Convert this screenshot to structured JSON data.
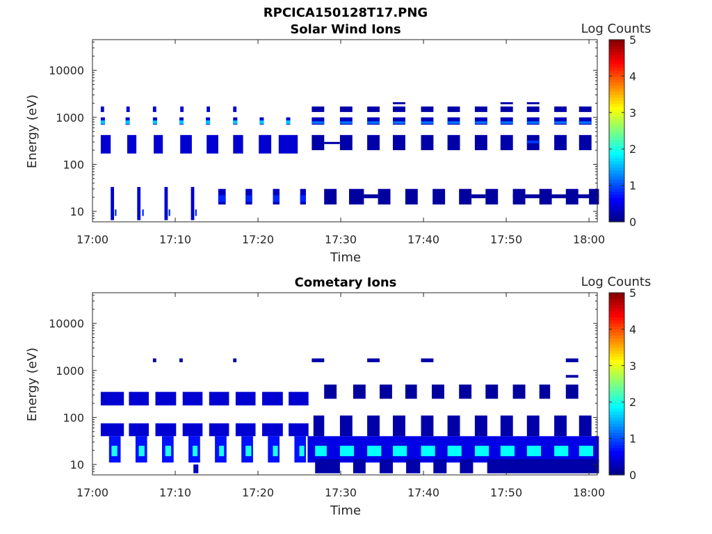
{
  "figure": {
    "title": "RPCICA150128T17.PNG"
  },
  "chart_data": [
    {
      "type": "heatmap",
      "title": "Solar Wind Ions",
      "xlabel": "Time",
      "ylabel": "Energy (eV)",
      "y_scale": "log",
      "ylim": [
        6,
        45000
      ],
      "xlim": [
        "17:00",
        "18:01"
      ],
      "x_ticks": [
        "17:00",
        "17:10",
        "17:20",
        "17:30",
        "17:40",
        "17:50",
        "18:00"
      ],
      "y_ticks": [
        "10",
        "100",
        "1000",
        "10000"
      ],
      "colorbar": {
        "label": "Log Counts",
        "range": [
          0,
          5
        ],
        "ticks": [
          "0",
          "1",
          "2",
          "3",
          "4",
          "5"
        ],
        "colormap": "jet"
      },
      "bands": [
        {
          "e": [
            700,
            1000
          ],
          "v": 0.4,
          "t": [
            [
              1.0,
              1.5
            ],
            [
              4.0,
              4.5
            ],
            [
              7.3,
              7.8
            ],
            [
              10.5,
              11.0
            ],
            [
              13.7,
              14.2
            ],
            [
              17.0,
              17.5
            ],
            [
              20.2,
              20.7
            ],
            [
              23.4,
              23.9
            ]
          ]
        },
        {
          "e": [
            720,
            860
          ],
          "v": 1.6,
          "t": [
            [
              1.0,
              1.5
            ],
            [
              4.0,
              4.5
            ],
            [
              7.3,
              7.8
            ],
            [
              10.5,
              11.0
            ],
            [
              13.7,
              14.2
            ],
            [
              17.0,
              17.5
            ],
            [
              20.2,
              20.7
            ],
            [
              23.4,
              23.9
            ]
          ]
        },
        {
          "e": [
            1300,
            1700
          ],
          "v": 0.4,
          "t": [
            [
              1.0,
              1.4
            ],
            [
              4.1,
              4.5
            ],
            [
              7.3,
              7.7
            ],
            [
              10.6,
              11.0
            ],
            [
              13.8,
              14.2
            ],
            [
              17.0,
              17.4
            ]
          ]
        },
        {
          "e": [
            170,
            420
          ],
          "v": 0.4,
          "t": [
            [
              1.0,
              2.2
            ],
            [
              4.2,
              5.3
            ],
            [
              7.4,
              8.5
            ],
            [
              10.6,
              12.0
            ],
            [
              13.8,
              15.2
            ],
            [
              17.0,
              18.2
            ],
            [
              20.1,
              21.6
            ],
            [
              22.5,
              24.8
            ]
          ]
        },
        {
          "e": [
            1300,
            1700
          ],
          "v": 0.2,
          "t": [
            [
              26.5,
              28.0
            ],
            [
              29.9,
              31.4
            ],
            [
              33.2,
              34.7
            ],
            [
              36.3,
              37.8
            ],
            [
              39.7,
              41.2
            ],
            [
              42.9,
              44.4
            ],
            [
              46.2,
              47.7
            ],
            [
              49.3,
              50.8
            ],
            [
              52.5,
              54.0
            ],
            [
              55.8,
              57.3
            ],
            [
              58.8,
              60.3
            ]
          ]
        },
        {
          "e": [
            1900,
            2100
          ],
          "v": 0.2,
          "t": [
            [
              36.3,
              37.8
            ],
            [
              49.3,
              50.8
            ],
            [
              52.5,
              54.0
            ]
          ]
        },
        {
          "e": [
            700,
            1000
          ],
          "v": 0.3,
          "t": [
            [
              26.5,
              28.0
            ],
            [
              29.9,
              31.4
            ],
            [
              33.2,
              34.7
            ],
            [
              36.3,
              37.8
            ],
            [
              39.7,
              41.2
            ],
            [
              42.9,
              44.4
            ],
            [
              46.2,
              47.7
            ],
            [
              49.3,
              50.8
            ],
            [
              52.5,
              54.0
            ],
            [
              55.8,
              57.3
            ],
            [
              58.8,
              60.3
            ]
          ]
        },
        {
          "e": [
            730,
            820
          ],
          "v": 1.2,
          "t": [
            [
              26.5,
              28.0
            ],
            [
              29.9,
              31.4
            ],
            [
              33.2,
              34.7
            ],
            [
              36.3,
              37.8
            ],
            [
              39.7,
              41.2
            ],
            [
              42.9,
              44.4
            ],
            [
              46.2,
              47.7
            ],
            [
              49.3,
              50.8
            ],
            [
              52.5,
              54.0
            ],
            [
              55.8,
              57.3
            ],
            [
              58.8,
              60.3
            ]
          ]
        },
        {
          "e": [
            200,
            420
          ],
          "v": 0.2,
          "t": [
            [
              26.5,
              28.0
            ],
            [
              29.9,
              31.4
            ],
            [
              33.2,
              34.7
            ],
            [
              36.3,
              37.8
            ],
            [
              39.7,
              41.2
            ],
            [
              42.9,
              44.4
            ],
            [
              46.2,
              47.7
            ],
            [
              49.3,
              50.8
            ],
            [
              52.5,
              54.0
            ],
            [
              55.8,
              57.3
            ],
            [
              58.8,
              60.3
            ]
          ]
        },
        {
          "e": [
            270,
            300
          ],
          "v": 0.2,
          "t": [
            [
              28.0,
              29.9
            ]
          ]
        },
        {
          "e": [
            280,
            320
          ],
          "v": 0.9,
          "t": [
            [
              52.5,
              54.0
            ]
          ]
        },
        {
          "e": [
            6.5,
            33
          ],
          "v": 0.4,
          "t": [
            [
              2.2,
              2.6
            ],
            [
              5.4,
              5.8
            ],
            [
              8.7,
              9.1
            ],
            [
              11.9,
              12.3
            ]
          ]
        },
        {
          "e": [
            8,
            11
          ],
          "v": 0.9,
          "t": [
            [
              2.7,
              2.9
            ],
            [
              6.0,
              6.2
            ],
            [
              9.2,
              9.4
            ],
            [
              12.4,
              12.6
            ]
          ]
        },
        {
          "e": [
            14,
            30
          ],
          "v": 0.3,
          "t": [
            [
              15.2,
              16.1
            ],
            [
              18.5,
              19.3
            ],
            [
              21.8,
              22.6
            ],
            [
              25.1,
              25.8
            ]
          ]
        },
        {
          "e": [
            16,
            22
          ],
          "v": 0.8,
          "t": [
            [
              15.2,
              16.1
            ],
            [
              18.5,
              19.3
            ],
            [
              21.8,
              22.6
            ],
            [
              25.1,
              25.8
            ]
          ]
        },
        {
          "e": [
            14,
            30
          ],
          "v": 0.15,
          "t": [
            [
              28.0,
              29.5
            ],
            [
              31.0,
              32.8
            ],
            [
              34.5,
              36.0
            ],
            [
              37.8,
              39.3
            ],
            [
              41.1,
              42.6
            ],
            [
              44.3,
              45.8
            ],
            [
              47.5,
              49.0
            ],
            [
              50.8,
              52.3
            ],
            [
              54.0,
              55.5
            ],
            [
              57.2,
              58.7
            ],
            [
              60.0,
              61.2
            ]
          ]
        },
        {
          "e": [
            19,
            23
          ],
          "v": 0.15,
          "t": [
            [
              32.8,
              34.5
            ],
            [
              45.8,
              47.5
            ],
            [
              50.8,
              61.2
            ]
          ]
        }
      ]
    },
    {
      "type": "heatmap",
      "title": "Cometary Ions",
      "xlabel": "Time",
      "ylabel": "Energy (eV)",
      "y_scale": "log",
      "ylim": [
        6,
        45000
      ],
      "xlim": [
        "17:00",
        "18:01"
      ],
      "x_ticks": [
        "17:00",
        "17:10",
        "17:20",
        "17:30",
        "17:40",
        "17:50",
        "18:00"
      ],
      "y_ticks": [
        "10",
        "100",
        "1000",
        "10000"
      ],
      "colorbar": {
        "label": "Log Counts",
        "range": [
          0,
          5
        ],
        "ticks": [
          "0",
          "1",
          "2",
          "3",
          "4",
          "5"
        ],
        "colormap": "jet"
      },
      "bands": [
        {
          "e": [
            1500,
            1800
          ],
          "v": 0.2,
          "t": [
            [
              7.3,
              7.7
            ],
            [
              10.5,
              10.9
            ],
            [
              17.0,
              17.4
            ],
            [
              26.5,
              28.0
            ],
            [
              33.2,
              34.7
            ],
            [
              39.7,
              41.2
            ],
            [
              57.2,
              58.7
            ]
          ]
        },
        {
          "e": [
            700,
            800
          ],
          "v": 0.2,
          "t": [
            [
              57.2,
              58.7
            ]
          ]
        },
        {
          "e": [
            180,
            350
          ],
          "v": 0.4,
          "t": [
            [
              1.0,
              3.8
            ],
            [
              4.4,
              6.8
            ],
            [
              7.6,
              10.1
            ],
            [
              10.9,
              13.3
            ],
            [
              14.1,
              16.5
            ],
            [
              17.3,
              19.7
            ],
            [
              20.5,
              23.0
            ],
            [
              23.7,
              26.1
            ]
          ]
        },
        {
          "e": [
            40,
            75
          ],
          "v": 0.4,
          "t": [
            [
              1.0,
              3.8
            ],
            [
              4.4,
              6.8
            ],
            [
              7.6,
              10.1
            ],
            [
              10.9,
              13.3
            ],
            [
              14.1,
              16.5
            ],
            [
              17.3,
              19.7
            ],
            [
              20.5,
              23.0
            ],
            [
              23.7,
              26.1
            ]
          ]
        },
        {
          "e": [
            11,
            40
          ],
          "v": 0.7,
          "t": [
            [
              2.0,
              3.4
            ],
            [
              5.2,
              6.6
            ],
            [
              8.4,
              9.8
            ],
            [
              11.6,
              13.0
            ],
            [
              14.8,
              16.2
            ],
            [
              18.0,
              19.4
            ],
            [
              21.2,
              22.6
            ],
            [
              24.4,
              25.8
            ]
          ]
        },
        {
          "e": [
            15,
            25
          ],
          "v": 2.0,
          "t": [
            [
              2.3,
              3.0
            ],
            [
              5.6,
              6.3
            ],
            [
              8.8,
              9.5
            ],
            [
              12.1,
              12.7
            ],
            [
              15.3,
              15.9
            ],
            [
              18.5,
              19.2
            ],
            [
              21.8,
              22.4
            ],
            [
              25.0,
              25.6
            ]
          ]
        },
        {
          "e": [
            6.5,
            10
          ],
          "v": 0.3,
          "t": [
            [
              12.2,
              12.8
            ]
          ]
        },
        {
          "e": [
            40,
            110
          ],
          "v": 0.2,
          "t": [
            [
              26.7,
              28.0
            ],
            [
              29.9,
              31.4
            ],
            [
              33.2,
              34.7
            ],
            [
              36.3,
              37.8
            ],
            [
              39.7,
              41.2
            ],
            [
              42.9,
              44.4
            ],
            [
              46.2,
              47.7
            ],
            [
              49.3,
              50.8
            ],
            [
              52.5,
              54.0
            ],
            [
              55.8,
              57.3
            ],
            [
              58.8,
              60.3
            ]
          ]
        },
        {
          "e": [
            250,
            500
          ],
          "v": 0.15,
          "t": [
            [
              28.0,
              29.5
            ],
            [
              31.5,
              33.0
            ],
            [
              34.7,
              36.2
            ],
            [
              37.8,
              39.2
            ],
            [
              41.0,
              42.5
            ],
            [
              44.3,
              45.8
            ],
            [
              47.5,
              49.0
            ],
            [
              50.8,
              52.3
            ],
            [
              54.0,
              55.3
            ],
            [
              57.2,
              58.7
            ]
          ]
        },
        {
          "e": [
            11,
            40
          ],
          "v": 0.5,
          "t": [
            [
              26.0,
              61.2
            ]
          ]
        },
        {
          "e": [
            15,
            25
          ],
          "v": 1.9,
          "t": [
            [
              26.9,
              28.3
            ],
            [
              29.9,
              31.6
            ],
            [
              33.2,
              34.9
            ],
            [
              36.3,
              38.0
            ],
            [
              39.7,
              41.4
            ],
            [
              42.9,
              44.6
            ],
            [
              46.2,
              47.9
            ],
            [
              49.3,
              51.0
            ],
            [
              52.5,
              54.2
            ],
            [
              55.8,
              57.5
            ],
            [
              58.8,
              60.5
            ]
          ]
        },
        {
          "e": [
            6.5,
            13
          ],
          "v": 0.2,
          "t": [
            [
              26.9,
              29.9
            ],
            [
              31.5,
              33.0
            ],
            [
              34.7,
              36.3
            ],
            [
              37.9,
              39.6
            ],
            [
              41.2,
              42.8
            ],
            [
              44.4,
              46.0
            ],
            [
              47.7,
              61.2
            ]
          ]
        }
      ]
    }
  ]
}
